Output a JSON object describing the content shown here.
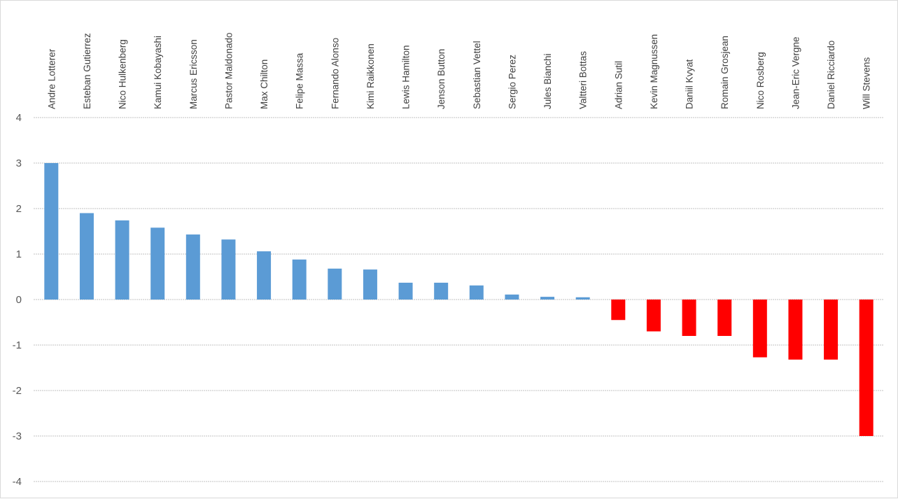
{
  "chart_data": {
    "type": "bar",
    "categories": [
      "Andre Lotterer",
      "Esteban Gutierrez",
      "Nico Hulkenberg",
      "Kamui Kobayashi",
      "Marcus Ericsson",
      "Pastor Maldonado",
      "Max Chilton",
      "Felipe Massa",
      "Fernando Alonso",
      "Kimi Raikkonen",
      "Lewis Hamilton",
      "Jenson Button",
      "Sebastian Vettel",
      "Sergio Perez",
      "Jules Bianchi",
      "Valtteri Bottas",
      "Adrian Sutil",
      "Kevin Magnussen",
      "Daniil Kvyat",
      "Romain Grosjean",
      "Nico Rosberg",
      "Jean-Eric Vergne",
      "Daniel Ricciardo",
      "Will Stevens"
    ],
    "values": [
      3.0,
      1.9,
      1.74,
      1.58,
      1.43,
      1.32,
      1.06,
      0.88,
      0.68,
      0.66,
      0.37,
      0.37,
      0.31,
      0.11,
      0.06,
      0.05,
      -0.45,
      -0.7,
      -0.8,
      -0.8,
      -1.27,
      -1.32,
      -1.32,
      -3.0
    ],
    "title": "",
    "xlabel": "",
    "ylabel": "",
    "ylim": [
      -4,
      4
    ],
    "yticks": [
      "4",
      "3",
      "2",
      "1",
      "0",
      "-1",
      "-2",
      "-3",
      "-4"
    ],
    "grid": true,
    "legend": "none",
    "colors": {
      "positive": "#5b9bd5",
      "negative": "#ff0000",
      "grid": "#c0c0c0"
    }
  }
}
